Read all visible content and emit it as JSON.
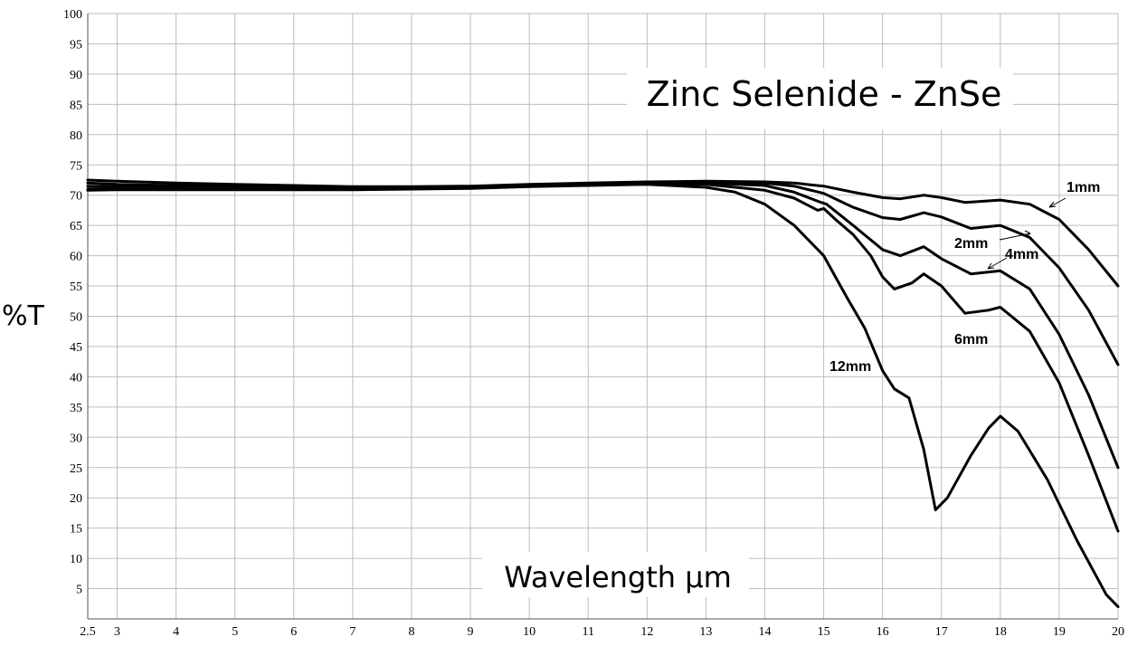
{
  "chart_data": {
    "type": "line",
    "title": "Zinc Selenide - ZnSe",
    "xlabel": "Wavelength µm",
    "ylabel": "%T",
    "xlim": [
      2.5,
      20
    ],
    "ylim": [
      0,
      100
    ],
    "x_ticks": [
      2.5,
      3,
      4,
      5,
      6,
      7,
      8,
      9,
      10,
      11,
      12,
      13,
      14,
      15,
      16,
      17,
      18,
      19,
      20
    ],
    "y_ticks": [
      5,
      10,
      15,
      20,
      25,
      30,
      35,
      40,
      45,
      50,
      55,
      60,
      65,
      70,
      75,
      80,
      85,
      90,
      95,
      100
    ],
    "grid": true,
    "series": [
      {
        "name": "1mm",
        "points": [
          [
            2.5,
            72.5
          ],
          [
            3,
            72.3
          ],
          [
            4,
            72.0
          ],
          [
            5,
            71.8
          ],
          [
            6,
            71.6
          ],
          [
            7,
            71.4
          ],
          [
            8,
            71.4
          ],
          [
            9,
            71.5
          ],
          [
            10,
            71.8
          ],
          [
            11,
            72.0
          ],
          [
            12,
            72.2
          ],
          [
            13,
            72.3
          ],
          [
            14,
            72.2
          ],
          [
            14.5,
            72.0
          ],
          [
            15,
            71.5
          ],
          [
            15.5,
            70.5
          ],
          [
            16,
            69.6
          ],
          [
            16.3,
            69.4
          ],
          [
            16.7,
            70.0
          ],
          [
            17,
            69.6
          ],
          [
            17.4,
            68.8
          ],
          [
            18,
            69.2
          ],
          [
            18.5,
            68.5
          ],
          [
            19,
            66.0
          ],
          [
            19.5,
            61.0
          ],
          [
            20,
            55.0
          ]
        ]
      },
      {
        "name": "2mm",
        "points": [
          [
            2.5,
            72.0
          ],
          [
            3,
            71.8
          ],
          [
            4,
            71.6
          ],
          [
            5,
            71.5
          ],
          [
            6,
            71.4
          ],
          [
            7,
            71.3
          ],
          [
            8,
            71.3
          ],
          [
            9,
            71.4
          ],
          [
            10,
            71.7
          ],
          [
            11,
            71.9
          ],
          [
            12,
            72.1
          ],
          [
            13,
            72.2
          ],
          [
            14,
            72.0
          ],
          [
            14.5,
            71.5
          ],
          [
            15,
            70.3
          ],
          [
            15.5,
            68.0
          ],
          [
            16,
            66.3
          ],
          [
            16.3,
            66.0
          ],
          [
            16.7,
            67.1
          ],
          [
            17,
            66.4
          ],
          [
            17.5,
            64.5
          ],
          [
            18,
            65.0
          ],
          [
            18.5,
            63.0
          ],
          [
            19,
            58.0
          ],
          [
            19.5,
            51.0
          ],
          [
            20,
            42.0
          ]
        ]
      },
      {
        "name": "4mm",
        "points": [
          [
            2.5,
            71.5
          ],
          [
            3,
            71.4
          ],
          [
            4,
            71.3
          ],
          [
            5,
            71.2
          ],
          [
            6,
            71.1
          ],
          [
            7,
            71.1
          ],
          [
            8,
            71.2
          ],
          [
            9,
            71.3
          ],
          [
            10,
            71.6
          ],
          [
            11,
            71.8
          ],
          [
            12,
            72.0
          ],
          [
            13,
            72.0
          ],
          [
            14,
            71.6
          ],
          [
            14.5,
            70.5
          ],
          [
            14.9,
            69.0
          ],
          [
            15.05,
            68.5
          ],
          [
            15.5,
            65.0
          ],
          [
            16,
            61.0
          ],
          [
            16.3,
            60.0
          ],
          [
            16.7,
            61.5
          ],
          [
            17,
            59.5
          ],
          [
            17.5,
            57.0
          ],
          [
            18,
            57.5
          ],
          [
            18.5,
            54.5
          ],
          [
            19,
            47.0
          ],
          [
            19.5,
            37.0
          ],
          [
            20,
            25.0
          ]
        ]
      },
      {
        "name": "6mm",
        "points": [
          [
            2.5,
            71.0
          ],
          [
            3,
            71.0
          ],
          [
            4,
            71.0
          ],
          [
            5,
            71.0
          ],
          [
            6,
            71.0
          ],
          [
            7,
            71.0
          ],
          [
            8,
            71.1
          ],
          [
            9,
            71.2
          ],
          [
            10,
            71.5
          ],
          [
            11,
            71.7
          ],
          [
            12,
            71.9
          ],
          [
            13,
            71.8
          ],
          [
            14,
            70.8
          ],
          [
            14.5,
            69.5
          ],
          [
            14.9,
            67.5
          ],
          [
            15,
            67.8
          ],
          [
            15.2,
            66.0
          ],
          [
            15.5,
            63.5
          ],
          [
            15.8,
            60.0
          ],
          [
            16,
            56.5
          ],
          [
            16.2,
            54.5
          ],
          [
            16.5,
            55.5
          ],
          [
            16.7,
            57.0
          ],
          [
            17,
            55.0
          ],
          [
            17.4,
            50.5
          ],
          [
            17.8,
            51.0
          ],
          [
            18,
            51.5
          ],
          [
            18.5,
            47.5
          ],
          [
            19,
            39.0
          ],
          [
            19.5,
            27.0
          ],
          [
            20,
            14.5
          ]
        ]
      },
      {
        "name": "12mm",
        "points": [
          [
            2.5,
            70.8
          ],
          [
            3,
            70.9
          ],
          [
            4,
            70.9
          ],
          [
            5,
            70.9
          ],
          [
            6,
            70.9
          ],
          [
            7,
            70.9
          ],
          [
            8,
            71.0
          ],
          [
            9,
            71.1
          ],
          [
            10,
            71.4
          ],
          [
            11,
            71.6
          ],
          [
            12,
            71.8
          ],
          [
            13,
            71.3
          ],
          [
            13.5,
            70.5
          ],
          [
            14,
            68.5
          ],
          [
            14.5,
            65.0
          ],
          [
            15,
            60.0
          ],
          [
            15.4,
            53.0
          ],
          [
            15.7,
            48.0
          ],
          [
            16,
            41.0
          ],
          [
            16.2,
            38.0
          ],
          [
            16.45,
            36.5
          ],
          [
            16.7,
            28.0
          ],
          [
            16.9,
            18.0
          ],
          [
            17.1,
            20.0
          ],
          [
            17.5,
            27.0
          ],
          [
            17.8,
            31.5
          ],
          [
            18,
            33.5
          ],
          [
            18.3,
            31.0
          ],
          [
            18.8,
            23.0
          ],
          [
            19.3,
            13.0
          ],
          [
            19.8,
            4.0
          ],
          [
            20,
            2.0
          ]
        ]
      }
    ],
    "annotations": [
      "1mm",
      "2mm",
      "4mm",
      "6mm",
      "12mm"
    ]
  }
}
